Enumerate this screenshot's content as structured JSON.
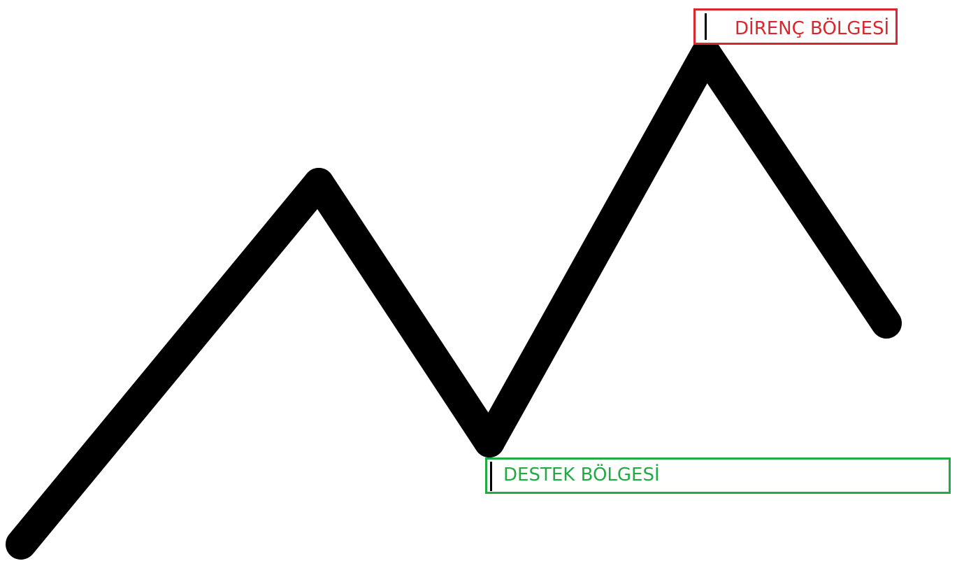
{
  "labels": {
    "resistance": "DİRENÇ BÖLGESİ",
    "support": "DESTEK BÖLGESİ"
  },
  "colors": {
    "line": "#000000",
    "resistance": "#d9272e",
    "support": "#22aa44",
    "background": "#ffffff"
  }
}
